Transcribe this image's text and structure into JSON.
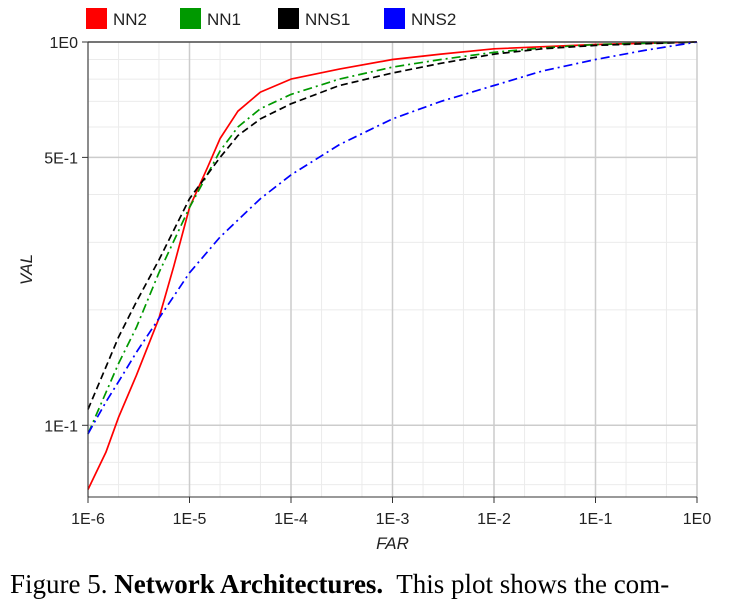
{
  "chart_data": {
    "type": "line",
    "title": "",
    "xlabel": "FAR",
    "ylabel": "VAL",
    "xscale": "log",
    "yscale": "log",
    "xlim": [
      1e-06,
      1
    ],
    "ylim": [
      0.065,
      1
    ],
    "grid": true,
    "legend_position": "top",
    "x_ticks": [
      {
        "value": 1e-06,
        "label": "1E-6"
      },
      {
        "value": 1e-05,
        "label": "1E-5"
      },
      {
        "value": 0.0001,
        "label": "1E-4"
      },
      {
        "value": 0.001,
        "label": "1E-3"
      },
      {
        "value": 0.01,
        "label": "1E-2"
      },
      {
        "value": 0.1,
        "label": "1E-1"
      },
      {
        "value": 1,
        "label": "1E0"
      }
    ],
    "y_ticks": [
      {
        "value": 0.1,
        "label": "1E-1"
      },
      {
        "value": 0.5,
        "label": "5E-1"
      },
      {
        "value": 1,
        "label": "1E0"
      }
    ],
    "series": [
      {
        "name": "NN2",
        "color": "#ff0000",
        "dash": "solid",
        "x": [
          1e-06,
          1.5e-06,
          2e-06,
          3e-06,
          5e-06,
          7e-06,
          1e-05,
          1.5e-05,
          2e-05,
          3e-05,
          5e-05,
          0.0001,
          0.0003,
          0.001,
          0.003,
          0.01,
          0.1,
          1
        ],
        "y": [
          0.068,
          0.085,
          0.105,
          0.135,
          0.19,
          0.26,
          0.37,
          0.47,
          0.56,
          0.66,
          0.74,
          0.8,
          0.85,
          0.9,
          0.93,
          0.96,
          0.985,
          1.0
        ]
      },
      {
        "name": "NN1",
        "color": "#009900",
        "dash": "dashdot",
        "x": [
          1e-06,
          2e-06,
          3e-06,
          5e-06,
          1e-05,
          2e-05,
          3e-05,
          5e-05,
          0.0001,
          0.0003,
          0.001,
          0.003,
          0.01,
          0.03,
          0.1,
          1
        ],
        "y": [
          0.095,
          0.145,
          0.18,
          0.25,
          0.37,
          0.52,
          0.6,
          0.67,
          0.73,
          0.8,
          0.86,
          0.9,
          0.94,
          0.965,
          0.985,
          1.0
        ]
      },
      {
        "name": "NNS1",
        "color": "#000000",
        "dash": "dashed",
        "x": [
          1e-06,
          2e-06,
          3e-06,
          5e-06,
          1e-05,
          2e-05,
          3e-05,
          5e-05,
          0.0001,
          0.0003,
          0.001,
          0.003,
          0.01,
          0.03,
          0.1,
          1
        ],
        "y": [
          0.11,
          0.17,
          0.21,
          0.27,
          0.39,
          0.5,
          0.57,
          0.63,
          0.69,
          0.77,
          0.83,
          0.88,
          0.93,
          0.96,
          0.98,
          1.0
        ]
      },
      {
        "name": "NNS2",
        "color": "#0000ff",
        "dash": "dashdot",
        "x": [
          1e-06,
          1.5e-06,
          2e-06,
          3e-06,
          5e-06,
          1e-05,
          2e-05,
          5e-05,
          0.0001,
          0.0003,
          0.001,
          0.003,
          0.01,
          0.03,
          0.1,
          0.3,
          1
        ],
        "y": [
          0.095,
          0.115,
          0.13,
          0.155,
          0.19,
          0.25,
          0.31,
          0.39,
          0.45,
          0.54,
          0.63,
          0.7,
          0.77,
          0.84,
          0.9,
          0.95,
          1.0
        ]
      }
    ]
  },
  "caption": {
    "prefix": "Figure 5. ",
    "bold": "Network Architectures.",
    "rest": "  This plot shows the com-"
  }
}
